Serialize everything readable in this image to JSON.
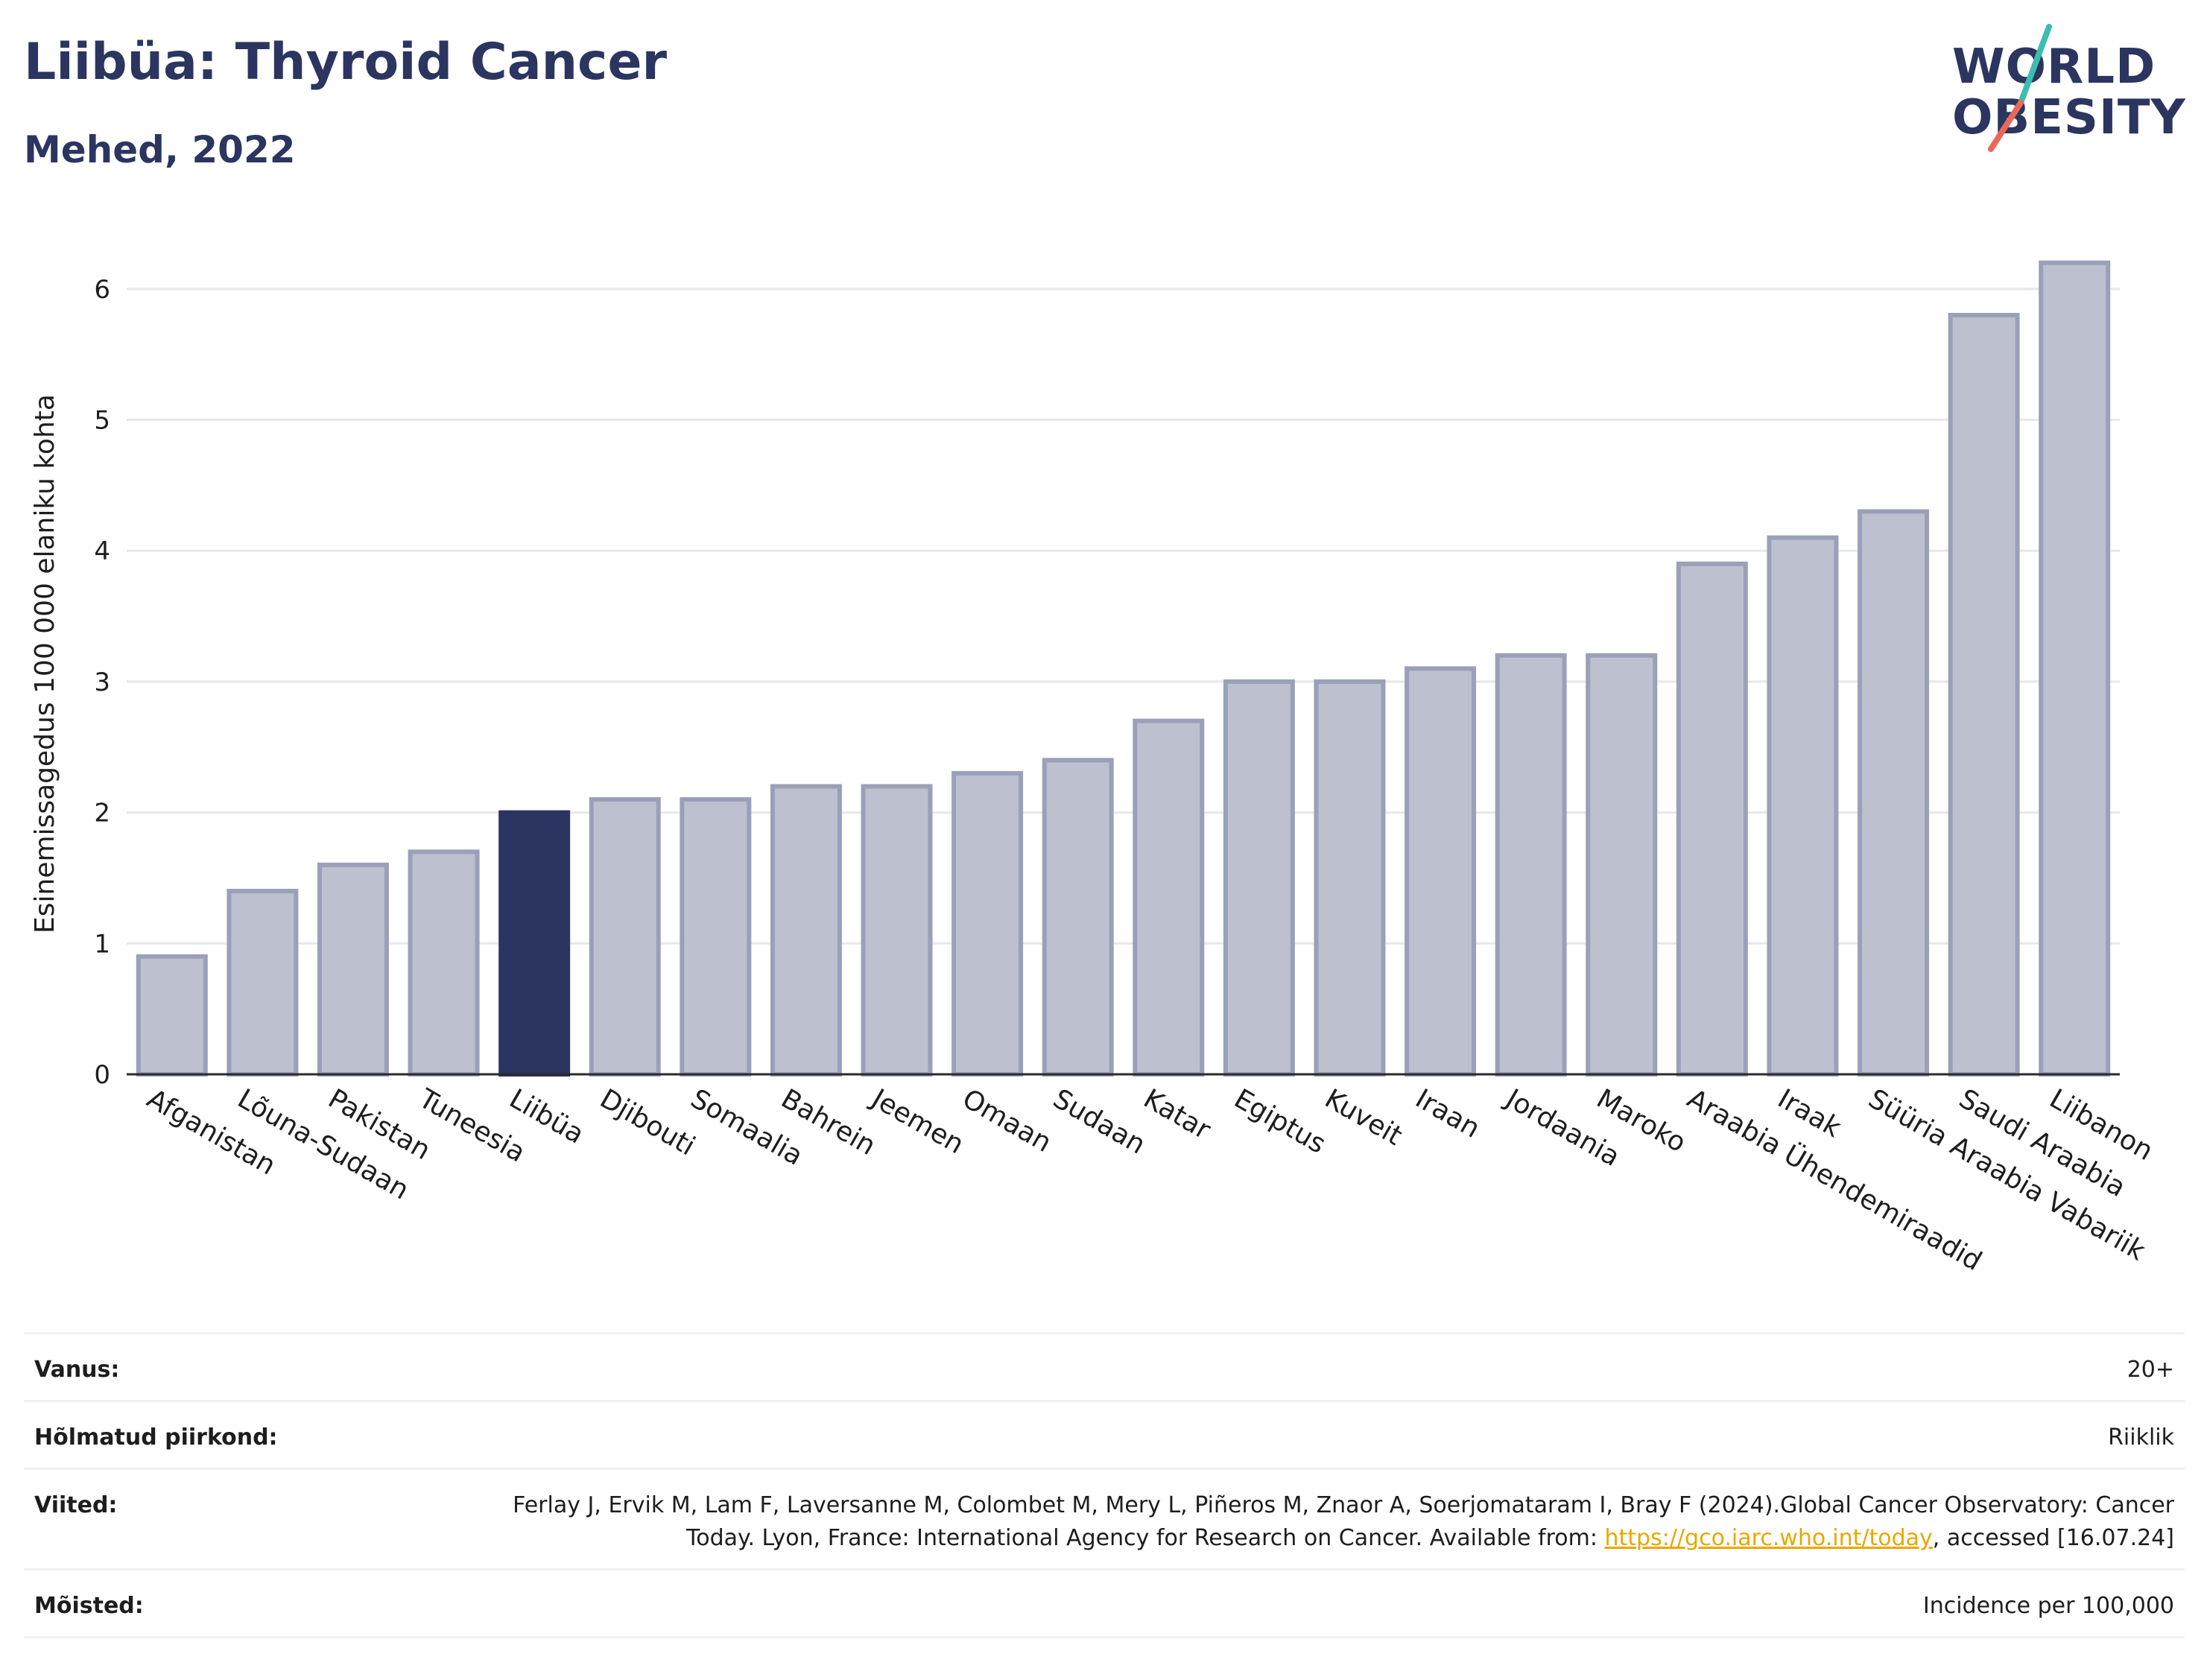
{
  "header": {
    "title": "Liibüa: Thyroid Cancer",
    "subtitle": "Mehed, 2022"
  },
  "logo": {
    "line1": "WORLD",
    "line2": "OBESITY",
    "slash_colors": [
      "#3dbdb0",
      "#e8685a"
    ]
  },
  "colors": {
    "highlight": "#2b3560",
    "bar_fill": "#bcc0cf",
    "bar_stroke": "#9aa0b8",
    "grid": "#e6e8ee"
  },
  "chart_data": {
    "type": "bar",
    "ylabel": "Esinemissagedus 100 000 elaniku kohta",
    "ylim": [
      0,
      6.5
    ],
    "yticks": [
      0,
      1,
      2,
      3,
      4,
      5,
      6
    ],
    "grid": true,
    "highlight": "Liibüa",
    "categories": [
      "Afganistan",
      "Lõuna-Sudaan",
      "Pakistan",
      "Tuneesia",
      "Liibüa",
      "Djibouti",
      "Somaalia",
      "Bahrein",
      "Jeemen",
      "Omaan",
      "Sudaan",
      "Katar",
      "Egiptus",
      "Kuveit",
      "Iraan",
      "Jordaania",
      "Maroko",
      "Araabia Ühendemiraadid",
      "Iraak",
      "Süüria Araabia Vabariik",
      "Saudi Araabia",
      "Liibanon"
    ],
    "values": [
      0.9,
      1.4,
      1.6,
      1.7,
      2.0,
      2.1,
      2.1,
      2.2,
      2.2,
      2.3,
      2.4,
      2.7,
      3.0,
      3.0,
      3.1,
      3.2,
      3.2,
      3.9,
      4.1,
      4.3,
      5.8,
      6.2
    ]
  },
  "info": {
    "age_label": "Vanus:",
    "age_value": "20+",
    "coverage_label": "Hõlmatud piirkond:",
    "coverage_value": "Riiklik",
    "refs_label": "Viited:",
    "refs_text_1": "Ferlay J, Ervik M, Lam F, Laversanne M, Colombet M, Mery L, Piñeros M, Znaor A, Soerjomataram I, Bray F (2024).Global Cancer Observatory: Cancer Today. Lyon, France: International Agency for Research on Cancer. Available from: ",
    "refs_link": "https://gco.iarc.who.int/today",
    "refs_text_2": ", accessed [16.07.24]",
    "defs_label": "Mõisted:",
    "defs_value": "Incidence per 100,000"
  }
}
